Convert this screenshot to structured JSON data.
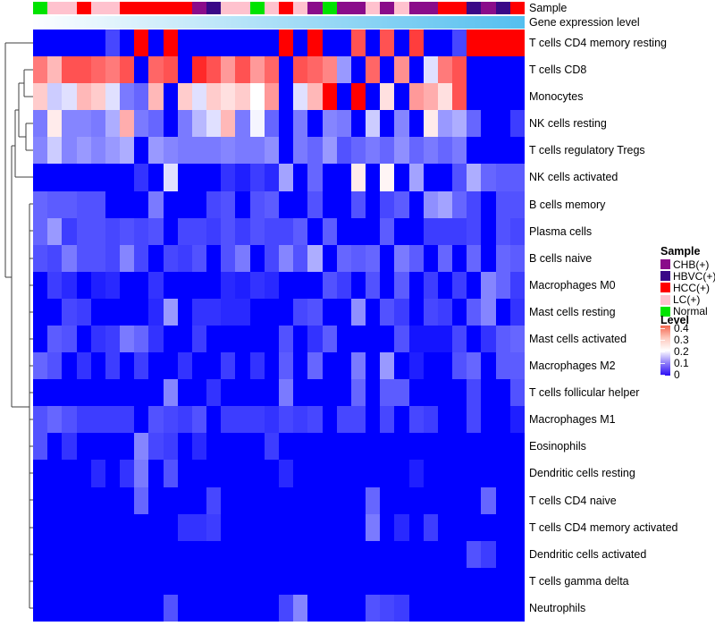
{
  "tracks": {
    "sample_label": "Sample",
    "gene_label": "Gene expression level",
    "sample_values": [
      "Normal",
      "LC",
      "LC",
      "HCC",
      "LC",
      "LC",
      "HCC",
      "HCC",
      "HCC",
      "HCC",
      "HCC",
      "CHB",
      "HBVC",
      "LC",
      "LC",
      "Normal",
      "LC",
      "HCC",
      "LC",
      "CHB",
      "Normal",
      "CHB",
      "CHB",
      "LC",
      "CHB",
      "LC",
      "CHB",
      "CHB",
      "HCC",
      "HCC",
      "HBVC",
      "CHB",
      "HBVC",
      "HCC"
    ],
    "gene_gradient_start": "#FDFEFF",
    "gene_gradient_end": "#54BFEF"
  },
  "sample_colors": {
    "CHB": "#8A0C8A",
    "HBVC": "#3A0887",
    "HCC": "#FF0000",
    "LC": "#FFC2CE",
    "Normal": "#00E300"
  },
  "legend": {
    "sample_title": "Sample",
    "sample_entries": [
      {
        "label": "CHB(+)",
        "key": "CHB"
      },
      {
        "label": "HBVC(+)",
        "key": "HBVC"
      },
      {
        "label": "HCC(+)",
        "key": "HCC"
      },
      {
        "label": "LC(+)",
        "key": "LC"
      },
      {
        "label": "Normal",
        "key": "Normal"
      }
    ],
    "level_title": "Level",
    "level_ticks": [
      "0.4",
      "0.3",
      "0.2",
      "0.1",
      "0"
    ]
  },
  "chart_data": {
    "type": "heatmap",
    "n_cols": 34,
    "vmax": 0.5,
    "colormap": {
      "low": "#0000FF",
      "mid": "#FFFFFF",
      "high": "#FF0000",
      "mid_at": 0.25
    },
    "rows": [
      {
        "label": "T cells CD4 memory resting",
        "values": [
          0,
          0,
          0,
          0,
          0,
          0.07,
          0,
          0.52,
          0,
          0.52,
          0,
          0,
          0,
          0,
          0,
          0,
          0,
          0.52,
          0,
          0.52,
          0,
          0,
          0.42,
          0,
          0.42,
          0,
          0.44,
          0,
          0,
          0.07,
          0.52,
          0.52,
          0.52,
          0.52
        ]
      },
      {
        "label": "T cells CD8",
        "values": [
          0.38,
          0.32,
          0.42,
          0.42,
          0.4,
          0.38,
          0.42,
          0,
          0.4,
          0.42,
          0,
          0.46,
          0.42,
          0.35,
          0.42,
          0.35,
          0.4,
          0,
          0.42,
          0.4,
          0.37,
          0.15,
          0,
          0.4,
          0,
          0.36,
          0,
          0.22,
          0.38,
          0.42,
          0,
          0,
          0,
          0
        ]
      },
      {
        "label": "Monocytes",
        "values": [
          0.3,
          0.2,
          0.22,
          0.32,
          0.3,
          0.22,
          0.12,
          0.1,
          0.32,
          0,
          0.3,
          0.22,
          0.3,
          0.28,
          0.3,
          0.25,
          0.35,
          0,
          0.22,
          0.32,
          0.5,
          0,
          0.5,
          0,
          0.28,
          0,
          0.35,
          0.33,
          0.28,
          0.42,
          0,
          0,
          0,
          0
        ]
      },
      {
        "label": "NK cells resting",
        "values": [
          0.12,
          0.27,
          0.13,
          0.13,
          0.12,
          0.17,
          0.33,
          0.12,
          0.1,
          0,
          0.12,
          0.18,
          0.22,
          0.32,
          0.12,
          0.24,
          0.1,
          0,
          0.12,
          0,
          0.13,
          0.12,
          0,
          0.2,
          0,
          0.13,
          0,
          0.27,
          0.15,
          0.17,
          0.1,
          0,
          0,
          0.06
        ]
      },
      {
        "label": "T cells regulatory  Tregs",
        "values": [
          0.13,
          0.2,
          0.13,
          0.15,
          0.13,
          0.15,
          0.17,
          0,
          0.15,
          0.13,
          0.12,
          0.12,
          0.12,
          0.13,
          0.12,
          0.12,
          0.14,
          0,
          0.12,
          0.1,
          0.15,
          0.08,
          0.1,
          0.12,
          0.1,
          0.14,
          0.1,
          0.12,
          0.1,
          0.12,
          0,
          0,
          0,
          0
        ]
      },
      {
        "label": "NK cells activated",
        "values": [
          0,
          0,
          0,
          0,
          0,
          0,
          0,
          0.05,
          0,
          0.22,
          0,
          0,
          0,
          0.05,
          0.03,
          0.06,
          0.04,
          0.16,
          0,
          0.1,
          0,
          0,
          0.27,
          0,
          0.26,
          0,
          0.16,
          0,
          0,
          0.08,
          0.17,
          0.1,
          0.09,
          0.09
        ]
      },
      {
        "label": "B cells memory",
        "values": [
          0.1,
          0.09,
          0.09,
          0.08,
          0.08,
          0,
          0,
          0,
          0.12,
          0,
          0,
          0,
          0.07,
          0.08,
          0,
          0.08,
          0.09,
          0,
          0,
          0.08,
          0,
          0,
          0.08,
          0,
          0.07,
          0.09,
          0,
          0.14,
          0.16,
          0.1,
          0.07,
          0,
          0.08,
          0.08
        ]
      },
      {
        "label": "Plasma cells",
        "values": [
          0.1,
          0.15,
          0.06,
          0.08,
          0.08,
          0.07,
          0.08,
          0.07,
          0.08,
          0,
          0.07,
          0.07,
          0.06,
          0.08,
          0.06,
          0.08,
          0.07,
          0.07,
          0.09,
          0,
          0.09,
          0,
          0,
          0,
          0.09,
          0,
          0,
          0.06,
          0.06,
          0.06,
          0.07,
          0,
          0.08,
          0.07
        ]
      },
      {
        "label": "B cells naive",
        "values": [
          0.08,
          0.07,
          0.12,
          0.08,
          0.08,
          0.07,
          0.13,
          0.07,
          0,
          0.07,
          0.06,
          0.08,
          0,
          0.08,
          0.12,
          0,
          0.07,
          0.13,
          0.08,
          0.17,
          0,
          0.1,
          0.09,
          0.1,
          0,
          0.12,
          0.09,
          0,
          0.1,
          0,
          0.1,
          0,
          0.1,
          0.09
        ]
      },
      {
        "label": "Macrophages M0",
        "values": [
          0,
          0.06,
          0.04,
          0,
          0.03,
          0.04,
          0,
          0,
          0.05,
          0,
          0,
          0,
          0,
          0.04,
          0.03,
          0.05,
          0.04,
          0,
          0,
          0,
          0.08,
          0.06,
          0,
          0.08,
          0,
          0.09,
          0,
          0.06,
          0,
          0.06,
          0,
          0.13,
          0.1,
          0.06
        ]
      },
      {
        "label": "Mast cells resting",
        "values": [
          0,
          0,
          0.07,
          0.06,
          0,
          0,
          0,
          0,
          0.04,
          0.15,
          0,
          0.05,
          0.05,
          0.04,
          0.04,
          0,
          0,
          0,
          0.07,
          0.08,
          0,
          0,
          0.14,
          0,
          0.08,
          0.06,
          0,
          0.07,
          0.06,
          0,
          0.09,
          0.13,
          0,
          0.05
        ]
      },
      {
        "label": "Mast cells activated",
        "values": [
          0,
          0.09,
          0.08,
          0,
          0.05,
          0.06,
          0.12,
          0.1,
          0.05,
          0,
          0,
          0.06,
          0,
          0,
          0,
          0,
          0,
          0.08,
          0,
          0.05,
          0.09,
          0,
          0,
          0,
          0,
          0.08,
          0.02,
          0.02,
          0.02,
          0.07,
          0,
          0.05,
          0.09,
          0.1
        ]
      },
      {
        "label": "Macrophages M2",
        "values": [
          0.1,
          0.08,
          0,
          0.05,
          0,
          0.06,
          0,
          0.06,
          0,
          0,
          0.05,
          0,
          0,
          0.06,
          0,
          0.05,
          0,
          0.09,
          0,
          0.1,
          0,
          0,
          0.12,
          0,
          0.15,
          0,
          0.03,
          0,
          0,
          0.08,
          0.1,
          0,
          0.09,
          0.09
        ]
      },
      {
        "label": "T cells follicular helper",
        "values": [
          0,
          0,
          0,
          0,
          0,
          0,
          0,
          0,
          0,
          0.13,
          0,
          0,
          0.05,
          0,
          0,
          0,
          0,
          0.12,
          0,
          0,
          0,
          0,
          0.1,
          0,
          0.09,
          0.09,
          0,
          0,
          0,
          0,
          0.07,
          0,
          0,
          0.08
        ]
      },
      {
        "label": "Macrophages M1",
        "values": [
          0.08,
          0.1,
          0.08,
          0.06,
          0.06,
          0.06,
          0.06,
          0,
          0.08,
          0.07,
          0.06,
          0.08,
          0,
          0.06,
          0.06,
          0.06,
          0.05,
          0.07,
          0.06,
          0.07,
          0,
          0.07,
          0.07,
          0,
          0.07,
          0,
          0.07,
          0.06,
          0,
          0,
          0.07,
          0,
          0,
          0.03
        ]
      },
      {
        "label": "Eosinophils",
        "values": [
          0.08,
          0,
          0.05,
          0,
          0,
          0,
          0,
          0.13,
          0.07,
          0.06,
          0,
          0.04,
          0,
          0,
          0,
          0,
          0.06,
          0,
          0,
          0,
          0,
          0,
          0,
          0,
          0,
          0,
          0,
          0,
          0,
          0,
          0,
          0,
          0,
          0
        ]
      },
      {
        "label": "Dendritic cells resting",
        "values": [
          0,
          0,
          0,
          0,
          0.04,
          0,
          0.05,
          0.12,
          0,
          0.08,
          0,
          0,
          0,
          0,
          0,
          0,
          0,
          0.04,
          0,
          0,
          0,
          0,
          0,
          0,
          0,
          0,
          0.03,
          0,
          0,
          0,
          0,
          0,
          0,
          0
        ]
      },
      {
        "label": "T cells CD4 naive",
        "values": [
          0,
          0,
          0,
          0,
          0,
          0,
          0,
          0.1,
          0,
          0,
          0,
          0,
          0.07,
          0,
          0,
          0,
          0,
          0,
          0,
          0,
          0,
          0,
          0,
          0.1,
          0,
          0,
          0,
          0,
          0,
          0,
          0,
          0.1,
          0,
          0
        ]
      },
      {
        "label": "T cells CD4 memory activated",
        "values": [
          0,
          0,
          0,
          0,
          0,
          0,
          0,
          0,
          0,
          0,
          0.05,
          0.05,
          0.06,
          0,
          0,
          0,
          0,
          0,
          0,
          0,
          0,
          0,
          0,
          0.12,
          0,
          0.04,
          0,
          0.06,
          0,
          0,
          0,
          0,
          0,
          0
        ]
      },
      {
        "label": "Dendritic cells activated",
        "values": [
          0,
          0,
          0,
          0,
          0,
          0,
          0,
          0,
          0,
          0,
          0,
          0,
          0,
          0,
          0,
          0,
          0,
          0,
          0,
          0,
          0,
          0,
          0,
          0,
          0,
          0,
          0,
          0,
          0,
          0,
          0.08,
          0.06,
          0,
          0
        ]
      },
      {
        "label": "T cells gamma delta",
        "values": [
          0,
          0,
          0,
          0,
          0,
          0,
          0,
          0,
          0,
          0,
          0,
          0,
          0,
          0,
          0,
          0,
          0,
          0,
          0,
          0,
          0,
          0,
          0,
          0,
          0,
          0,
          0,
          0,
          0,
          0,
          0,
          0,
          0,
          0
        ]
      },
      {
        "label": "Neutrophils",
        "values": [
          0,
          0,
          0,
          0,
          0,
          0,
          0,
          0,
          0,
          0.08,
          0,
          0,
          0,
          0,
          0,
          0,
          0,
          0.07,
          0.13,
          0,
          0,
          0,
          0,
          0.08,
          0.07,
          0.06,
          0,
          0,
          0,
          0,
          0,
          0,
          0,
          0
        ]
      }
    ]
  }
}
